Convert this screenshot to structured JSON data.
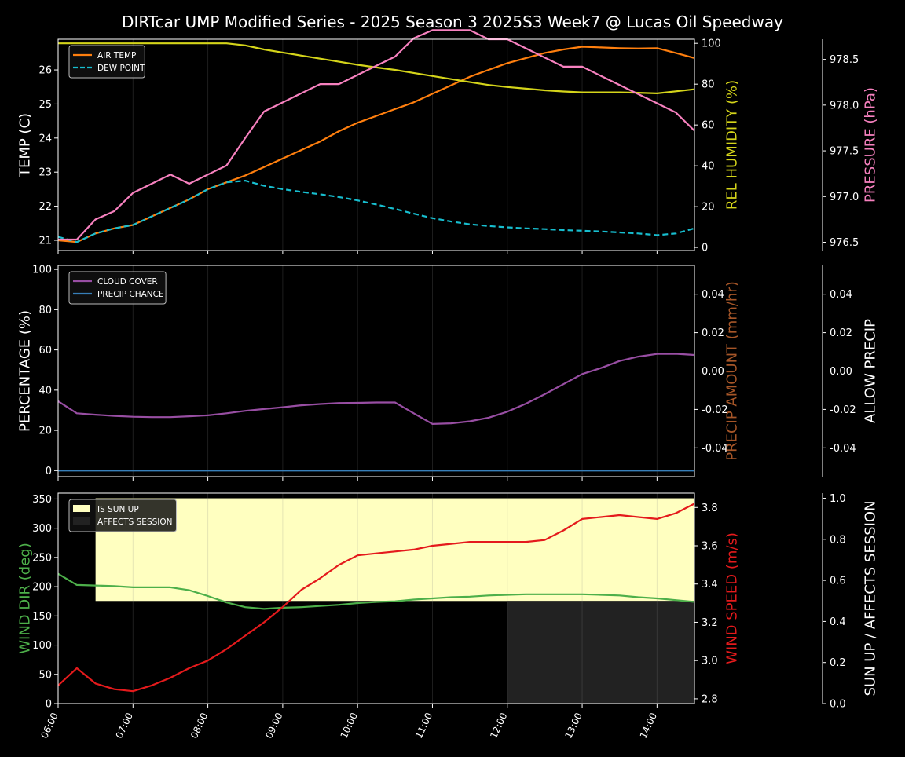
{
  "title": "DIRTcar UMP Modified Series - 2025 Season 3 2025S3 Week7 @ Lucas Oil Speedway",
  "colors": {
    "background": "#000000",
    "axis": "#ffffff",
    "air_temp": "#ff7f0e",
    "dew_point": "#17becf",
    "rel_humidity": "#d4d41a",
    "pressure": "#f781bf",
    "cloud_cover": "#984ea3",
    "precip_chance": "#377eb8",
    "precip_amount": "#a65628",
    "wind_dir": "#4daf4a",
    "wind_speed": "#e41a1c",
    "sun_up": "#ffffc0",
    "affects_session": "#222222"
  },
  "chart_data": [
    {
      "type": "line",
      "x": [
        "06:00",
        "06:15",
        "06:30",
        "06:45",
        "07:00",
        "07:15",
        "07:30",
        "07:45",
        "08:00",
        "08:15",
        "08:30",
        "08:45",
        "09:00",
        "09:15",
        "09:30",
        "09:45",
        "10:00",
        "10:15",
        "10:30",
        "10:45",
        "11:00",
        "11:15",
        "11:30",
        "11:45",
        "12:00",
        "12:15",
        "12:30",
        "12:45",
        "13:00",
        "13:15",
        "13:30",
        "13:45",
        "14:00",
        "14:15",
        "14:30"
      ],
      "xticks": [
        "06:00",
        "07:00",
        "08:00",
        "09:00",
        "10:00",
        "11:00",
        "12:00",
        "13:00",
        "14:00"
      ],
      "ylabel": "TEMP (C)",
      "ylim": [
        20.7,
        26.9
      ],
      "yticks": [
        21,
        22,
        23,
        24,
        25,
        26
      ],
      "y2label": "REL HUMIDITY (%)",
      "y2lim": [
        -1.5,
        102
      ],
      "y2ticks": [
        0,
        20,
        40,
        60,
        80,
        100
      ],
      "y3label": "PRESSURE (hPa)",
      "y3lim": [
        976.41,
        978.72
      ],
      "y3ticks": [
        976.5,
        977.0,
        977.5,
        978.0,
        978.5
      ],
      "legend_position": "top-left",
      "series": [
        {
          "name": "AIR TEMP",
          "axis": "left",
          "style": "solid",
          "values": [
            21.0,
            20.95,
            21.2,
            21.35,
            21.45,
            21.7,
            21.95,
            22.2,
            22.5,
            22.7,
            22.9,
            23.15,
            23.4,
            23.65,
            23.9,
            24.2,
            24.45,
            24.65,
            24.85,
            25.05,
            25.3,
            25.55,
            25.8,
            26.0,
            26.2,
            26.35,
            26.5,
            26.6,
            26.68,
            26.66,
            26.64,
            26.63,
            26.64,
            26.5,
            26.35
          ]
        },
        {
          "name": "DEW POINT",
          "axis": "left",
          "style": "dashed",
          "values": [
            21.1,
            20.95,
            21.2,
            21.35,
            21.45,
            21.7,
            21.95,
            22.2,
            22.5,
            22.7,
            22.75,
            22.6,
            22.5,
            22.42,
            22.35,
            22.27,
            22.17,
            22.05,
            21.92,
            21.78,
            21.65,
            21.55,
            21.47,
            21.42,
            21.38,
            21.35,
            21.33,
            21.3,
            21.28,
            21.26,
            21.23,
            21.2,
            21.15,
            21.2,
            21.35
          ]
        },
        {
          "name": "REL HUMIDITY",
          "axis": "right",
          "style": "solid",
          "values": [
            100,
            100,
            100,
            100,
            100,
            100,
            100,
            100,
            100,
            100,
            99,
            97,
            95.5,
            94,
            92.5,
            91,
            89.5,
            88.2,
            87,
            85.5,
            84,
            82.5,
            81,
            79.6,
            78.6,
            77.8,
            77,
            76.4,
            76,
            76,
            76,
            75.8,
            75.5,
            76.5,
            77.5
          ]
        },
        {
          "name": "PRESSURE",
          "axis": "far-right",
          "style": "solid",
          "values": [
            976.53,
            976.53,
            976.75,
            976.84,
            977.04,
            977.14,
            977.24,
            977.14,
            977.24,
            977.34,
            977.64,
            977.93,
            978.03,
            978.13,
            978.23,
            978.23,
            978.33,
            978.43,
            978.53,
            978.73,
            978.82,
            978.82,
            978.82,
            978.72,
            978.72,
            978.62,
            978.52,
            978.42,
            978.42,
            978.32,
            978.22,
            978.12,
            978.02,
            977.92,
            977.72
          ]
        }
      ]
    },
    {
      "type": "line",
      "x": [
        "06:00",
        "06:15",
        "06:30",
        "06:45",
        "07:00",
        "07:15",
        "07:30",
        "07:45",
        "08:00",
        "08:15",
        "08:30",
        "08:45",
        "09:00",
        "09:15",
        "09:30",
        "09:45",
        "10:00",
        "10:15",
        "10:30",
        "10:45",
        "11:00",
        "11:15",
        "11:30",
        "11:45",
        "12:00",
        "12:15",
        "12:30",
        "12:45",
        "13:00",
        "13:15",
        "13:30",
        "13:45",
        "14:00",
        "14:15",
        "14:30"
      ],
      "xticks": [
        "06:00",
        "07:00",
        "08:00",
        "09:00",
        "10:00",
        "11:00",
        "12:00",
        "13:00",
        "14:00"
      ],
      "ylabel": "PERCENTAGE (%)",
      "ylim": [
        -3,
        102
      ],
      "yticks": [
        0,
        20,
        40,
        60,
        80,
        100
      ],
      "y2label": "PRECIP AMOUNT (mm/hr)",
      "y2lim": [
        -0.055,
        0.055
      ],
      "y2ticks": [
        -0.04,
        -0.02,
        0.0,
        0.02,
        0.04
      ],
      "y3label": "ALLOW PRECIP",
      "y3lim": [
        -0.055,
        0.055
      ],
      "y3ticks": [
        -0.04,
        -0.02,
        0.0,
        0.02,
        0.04
      ],
      "legend_position": "top-left",
      "series": [
        {
          "name": "CLOUD COVER",
          "axis": "left",
          "style": "solid",
          "values": [
            34.5,
            28.5,
            27.8,
            27.2,
            26.8,
            26.6,
            26.6,
            27.0,
            27.5,
            28.5,
            29.7,
            30.6,
            31.5,
            32.5,
            33.1,
            33.6,
            33.7,
            33.9,
            33.9,
            28.5,
            23.2,
            23.5,
            24.5,
            26.3,
            29.3,
            33.3,
            38.0,
            43.0,
            48.0,
            51.0,
            54.5,
            56.7,
            58.0,
            58.1,
            57.5
          ]
        },
        {
          "name": "PRECIP CHANCE",
          "axis": "left",
          "style": "solid",
          "values": [
            0,
            0,
            0,
            0,
            0,
            0,
            0,
            0,
            0,
            0,
            0,
            0,
            0,
            0,
            0,
            0,
            0,
            0,
            0,
            0,
            0,
            0,
            0,
            0,
            0,
            0,
            0,
            0,
            0,
            0,
            0,
            0,
            0,
            0,
            0
          ]
        }
      ]
    },
    {
      "type": "line",
      "x": [
        "06:00",
        "06:15",
        "06:30",
        "06:45",
        "07:00",
        "07:15",
        "07:30",
        "07:45",
        "08:00",
        "08:15",
        "08:30",
        "08:45",
        "09:00",
        "09:15",
        "09:30",
        "09:45",
        "10:00",
        "10:15",
        "10:30",
        "10:45",
        "11:00",
        "11:15",
        "11:30",
        "11:45",
        "12:00",
        "12:15",
        "12:30",
        "12:45",
        "13:00",
        "13:15",
        "13:30",
        "13:45",
        "14:00",
        "14:15",
        "14:30"
      ],
      "xticks": [
        "06:00",
        "07:00",
        "08:00",
        "09:00",
        "10:00",
        "11:00",
        "12:00",
        "13:00",
        "14:00"
      ],
      "ylabel": "WIND DIR (deg)",
      "ylim": [
        0,
        360
      ],
      "yticks": [
        0,
        50,
        100,
        150,
        200,
        250,
        300,
        350
      ],
      "y2label": "WIND SPEED (m/s)",
      "y2lim": [
        2.775,
        3.875
      ],
      "y2ticks": [
        2.8,
        3.0,
        3.2,
        3.4,
        3.6,
        3.8
      ],
      "y3label": "SUN UP / AFFECTS SESSION",
      "y3lim": [
        0,
        1.025
      ],
      "y3ticks": [
        0.0,
        0.2,
        0.4,
        0.6,
        0.8,
        1.0
      ],
      "legend_position": "top-left",
      "bands": [
        {
          "name": "IS SUN UP",
          "start": "06:30",
          "end": "14:30",
          "from": 0.5,
          "to": 1.0
        },
        {
          "name": "AFFECTS SESSION",
          "start": "12:00",
          "end": "14:30",
          "from": 0.0,
          "to": 0.5
        }
      ],
      "series": [
        {
          "name": "WIND DIR",
          "axis": "left",
          "style": "solid",
          "values": [
            222,
            203,
            202,
            201,
            199,
            199,
            199,
            194,
            184,
            173,
            165,
            162,
            164,
            165,
            167,
            169,
            172,
            174,
            175,
            178,
            180,
            182,
            183,
            185,
            186,
            187,
            187,
            187,
            187,
            186,
            185,
            182,
            180,
            177,
            174
          ]
        },
        {
          "name": "WIND SPEED",
          "axis": "right",
          "style": "solid",
          "values": [
            2.87,
            2.96,
            2.88,
            2.85,
            2.84,
            2.87,
            2.91,
            2.96,
            3.0,
            3.06,
            3.13,
            3.2,
            3.28,
            3.37,
            3.43,
            3.5,
            3.55,
            3.56,
            3.57,
            3.58,
            3.6,
            3.61,
            3.62,
            3.62,
            3.62,
            3.62,
            3.63,
            3.68,
            3.74,
            3.75,
            3.76,
            3.75,
            3.74,
            3.77,
            3.82
          ]
        }
      ]
    }
  ]
}
